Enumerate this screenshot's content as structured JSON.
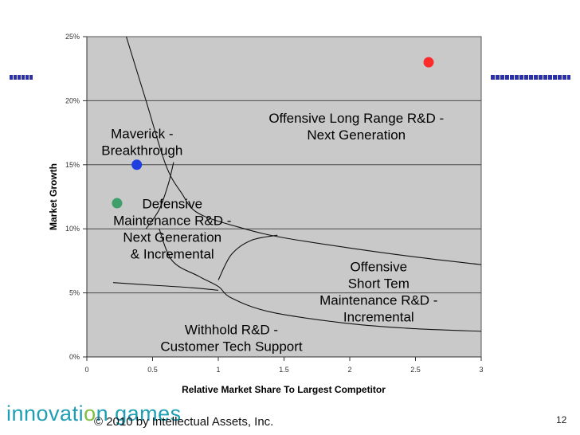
{
  "chart_data": {
    "type": "scatter",
    "xlabel": "Relative Market Share To Largest Competitor",
    "ylabel": "Market Growth",
    "xlim": [
      0,
      3
    ],
    "ylim": [
      0,
      0.25
    ],
    "x_ticks": [
      0,
      0.5,
      1,
      1.5,
      2,
      2.5,
      3
    ],
    "x_tick_labels": [
      "0",
      "0.5",
      "1",
      "1.5",
      "2",
      "2.5",
      "3"
    ],
    "y_ticks": [
      0,
      0.05,
      0.1,
      0.15,
      0.2,
      0.25
    ],
    "y_tick_labels": [
      "0%",
      "5%",
      "10%",
      "15%",
      "20%",
      "25%"
    ],
    "grid": "horizontal",
    "points": [
      {
        "name": "red",
        "x": 2.6,
        "y": 0.23,
        "color": "#ff2a2a"
      },
      {
        "name": "blue",
        "x": 0.38,
        "y": 0.15,
        "color": "#1f3fe0"
      },
      {
        "name": "green",
        "x": 0.23,
        "y": 0.12,
        "color": "#3f9f6a"
      }
    ],
    "curves": [
      {
        "name": "upper-boundary",
        "points": [
          [
            0.3,
            0.25
          ],
          [
            0.45,
            0.2
          ],
          [
            0.6,
            0.15
          ],
          [
            0.72,
            0.128
          ],
          [
            0.85,
            0.112
          ],
          [
            1.2,
            0.1
          ],
          [
            1.5,
            0.093
          ],
          [
            2.0,
            0.085
          ],
          [
            2.5,
            0.078
          ],
          [
            3.0,
            0.072
          ]
        ]
      },
      {
        "name": "lower-boundary",
        "points": [
          [
            0.55,
            0.1
          ],
          [
            0.65,
            0.075
          ],
          [
            0.85,
            0.063
          ],
          [
            1.0,
            0.055
          ],
          [
            1.1,
            0.046
          ],
          [
            1.4,
            0.035
          ],
          [
            2.0,
            0.026
          ],
          [
            2.5,
            0.022
          ],
          [
            3.0,
            0.02
          ]
        ]
      },
      {
        "name": "middle-divider",
        "points": [
          [
            0.2,
            0.058
          ],
          [
            0.5,
            0.056
          ],
          [
            0.8,
            0.054
          ],
          [
            1.0,
            0.052
          ]
        ]
      },
      {
        "name": "defensive-notch",
        "points": [
          [
            0.45,
            0.1
          ],
          [
            0.55,
            0.115
          ],
          [
            0.62,
            0.135
          ],
          [
            0.66,
            0.152
          ]
        ]
      },
      {
        "name": "short-notch",
        "points": [
          [
            1.0,
            0.06
          ],
          [
            1.1,
            0.08
          ],
          [
            1.25,
            0.091
          ],
          [
            1.45,
            0.095
          ]
        ]
      }
    ],
    "annotations": [
      {
        "name": "maverick",
        "lines": [
          "Maverick -",
          "Breakthrough"
        ],
        "x": 0.42,
        "y": 0.168
      },
      {
        "name": "offensive-long-range",
        "lines": [
          "Offensive Long Range R&D -",
          "Next Generation"
        ],
        "x": 2.05,
        "y": 0.18
      },
      {
        "name": "defensive-maintenance",
        "lines": [
          "Defensive",
          "Maintenance R&D -",
          "Next Generation",
          "& Incremental"
        ],
        "x": 0.65,
        "y": 0.1
      },
      {
        "name": "offensive-short-term",
        "lines": [
          "Offensive",
          "Short Tem",
          "Maintenance R&D -",
          "Incremental"
        ],
        "x": 2.22,
        "y": 0.051
      },
      {
        "name": "withhold",
        "lines": [
          "Withhold R&D -",
          "Customer Tech Support"
        ],
        "x": 1.1,
        "y": 0.015
      }
    ]
  },
  "footer": {
    "logo_part1": "innovati",
    "logo_accent": "o",
    "logo_part2": "n games",
    "copyright": "© 2010 by Intellectual Assets, Inc.",
    "page_number": "12"
  }
}
